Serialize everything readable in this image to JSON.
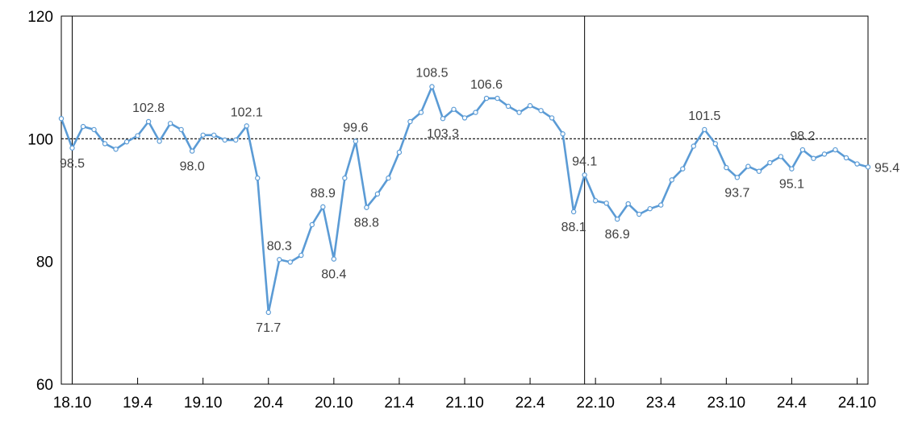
{
  "chart_data": {
    "type": "line",
    "title": "",
    "xlabel": "",
    "ylabel": "",
    "ylim": [
      60,
      120
    ],
    "yticks": [
      60,
      80,
      100,
      120
    ],
    "reference_line": 100,
    "x_tick_labels": [
      "18.10",
      "19.4",
      "19.10",
      "20.4",
      "20.10",
      "21.4",
      "21.10",
      "22.4",
      "22.10",
      "23.4",
      "23.10",
      "24.4",
      "24.10"
    ],
    "vertical_markers": [
      1,
      48
    ],
    "colors": {
      "line": "#5b9bd5",
      "marker_fill": "#ffffff",
      "reference": "#000000",
      "axis": "#000000"
    },
    "values": [
      103.3,
      98.5,
      102.0,
      101.5,
      99.2,
      98.3,
      99.5,
      100.5,
      102.8,
      99.6,
      102.5,
      101.5,
      98.0,
      100.6,
      100.6,
      99.8,
      99.8,
      102.1,
      93.6,
      71.7,
      80.3,
      79.9,
      81.0,
      86.0,
      88.9,
      80.4,
      93.6,
      99.6,
      88.8,
      91.0,
      93.6,
      97.8,
      102.8,
      104.3,
      108.5,
      103.3,
      104.8,
      103.4,
      104.3,
      106.6,
      106.6,
      105.3,
      104.3,
      105.4,
      104.6,
      103.4,
      100.8,
      88.1,
      94.1,
      89.9,
      89.5,
      86.9,
      89.4,
      87.7,
      88.6,
      89.2,
      93.3,
      95.1,
      98.8,
      101.5,
      99.2,
      95.3,
      93.7,
      95.5,
      94.7,
      96.1,
      97.1,
      95.1,
      98.2,
      96.8,
      97.5,
      98.2,
      96.9,
      95.9,
      95.4
    ],
    "point_labels": [
      {
        "index": 1,
        "text": "98.5"
      },
      {
        "index": 8,
        "text": "102.8"
      },
      {
        "index": 12,
        "text": "98.0"
      },
      {
        "index": 17,
        "text": "102.1"
      },
      {
        "index": 19,
        "text": "71.7"
      },
      {
        "index": 20,
        "text": "80.3"
      },
      {
        "index": 24,
        "text": "88.9"
      },
      {
        "index": 25,
        "text": "80.4"
      },
      {
        "index": 27,
        "text": "99.6"
      },
      {
        "index": 28,
        "text": "88.8"
      },
      {
        "index": 34,
        "text": "108.5"
      },
      {
        "index": 35,
        "text": "103.3"
      },
      {
        "index": 39,
        "text": "106.6"
      },
      {
        "index": 47,
        "text": "88.1"
      },
      {
        "index": 48,
        "text": "94.1"
      },
      {
        "index": 51,
        "text": "86.9"
      },
      {
        "index": 59,
        "text": "101.5"
      },
      {
        "index": 62,
        "text": "93.7"
      },
      {
        "index": 67,
        "text": "95.1"
      },
      {
        "index": 68,
        "text": "98.2"
      },
      {
        "index": 74,
        "text": "95.4"
      }
    ]
  }
}
